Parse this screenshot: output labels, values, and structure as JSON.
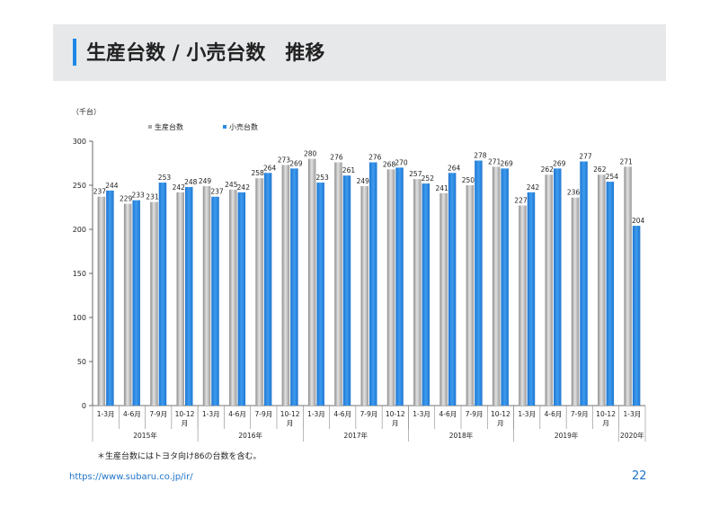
{
  "header": {
    "title": "生産台数 / 小売台数　推移"
  },
  "chart_data": {
    "type": "bar",
    "unit_label": "（千台）",
    "ylim": [
      0,
      300
    ],
    "yticks": [
      0,
      50,
      100,
      150,
      200,
      250,
      300
    ],
    "legend_position": "top-left",
    "grid": false,
    "categories": [
      "1-3月",
      "4-6月",
      "7-9月",
      "10-12\n月",
      "1-3月",
      "4-6月",
      "7-9月",
      "10-12\n月",
      "1-3月",
      "4-6月",
      "7-9月",
      "10-12\n月",
      "1-3月",
      "4-6月",
      "7-9月",
      "10-12\n月",
      "1-3月",
      "4-6月",
      "7-9月",
      "10-12\n月",
      "1-3月"
    ],
    "years": [
      {
        "label": "2015年",
        "count": 4
      },
      {
        "label": "2016年",
        "count": 4
      },
      {
        "label": "2017年",
        "count": 4
      },
      {
        "label": "2018年",
        "count": 4
      },
      {
        "label": "2019年",
        "count": 4
      },
      {
        "label": "2020年",
        "count": 1
      }
    ],
    "series": [
      {
        "name": "生産台数",
        "color": "#a9a9a9",
        "values": [
          237,
          229,
          231,
          242,
          249,
          245,
          258,
          273,
          280,
          276,
          249,
          268,
          257,
          241,
          250,
          271,
          227,
          262,
          236,
          262,
          271
        ]
      },
      {
        "name": "小売台数",
        "color": "#2b8be0",
        "values": [
          244,
          233,
          253,
          248,
          237,
          242,
          264,
          269,
          253,
          261,
          276,
          270,
          252,
          264,
          278,
          269,
          242,
          269,
          277,
          254,
          204
        ]
      }
    ]
  },
  "footnote": "＊生産台数にはトヨタ向け86の台数を含む。",
  "footer": {
    "url": "https://www.subaru.co.jp/ir/",
    "page_number": "22"
  }
}
